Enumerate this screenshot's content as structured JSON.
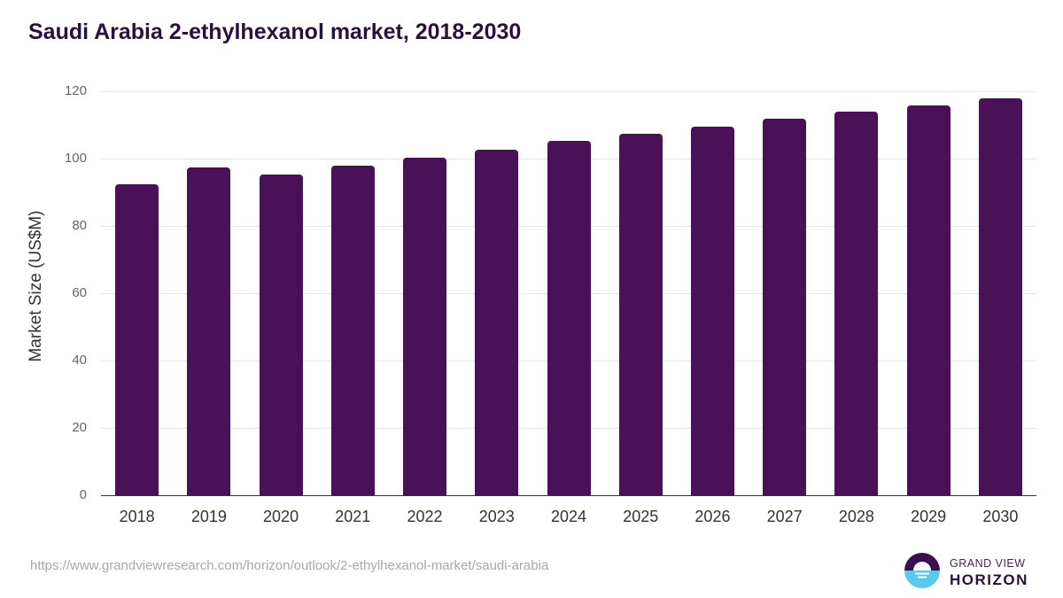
{
  "title": "Saudi Arabia 2-ethylhexanol market, 2018-2030",
  "source_url": "https://www.grandviewresearch.com/horizon/outlook/2-ethylhexanol-market/saudi-arabia",
  "logo": {
    "line1": "GRAND VIEW",
    "line2": "HORIZON",
    "icon": "horizon-sun-icon"
  },
  "colors": {
    "bar": "#4b1158",
    "title": "#2a1040",
    "logo_top": "#2a1040",
    "logo_bottom": "#5bc8f0"
  },
  "chart_data": {
    "type": "bar",
    "title": "Saudi Arabia 2-ethylhexanol market, 2018-2030",
    "xlabel": "",
    "ylabel": "Market Size (US$M)",
    "ylim": [
      0,
      120
    ],
    "yticks": [
      0,
      20,
      40,
      60,
      80,
      100,
      120
    ],
    "grid": true,
    "legend": "none",
    "categories": [
      "2018",
      "2019",
      "2020",
      "2021",
      "2022",
      "2023",
      "2024",
      "2025",
      "2026",
      "2027",
      "2028",
      "2029",
      "2030"
    ],
    "values": [
      92.4,
      97.4,
      95.3,
      97.9,
      100.3,
      102.6,
      105.3,
      107.4,
      109.5,
      111.8,
      113.9,
      115.8,
      117.9
    ]
  }
}
